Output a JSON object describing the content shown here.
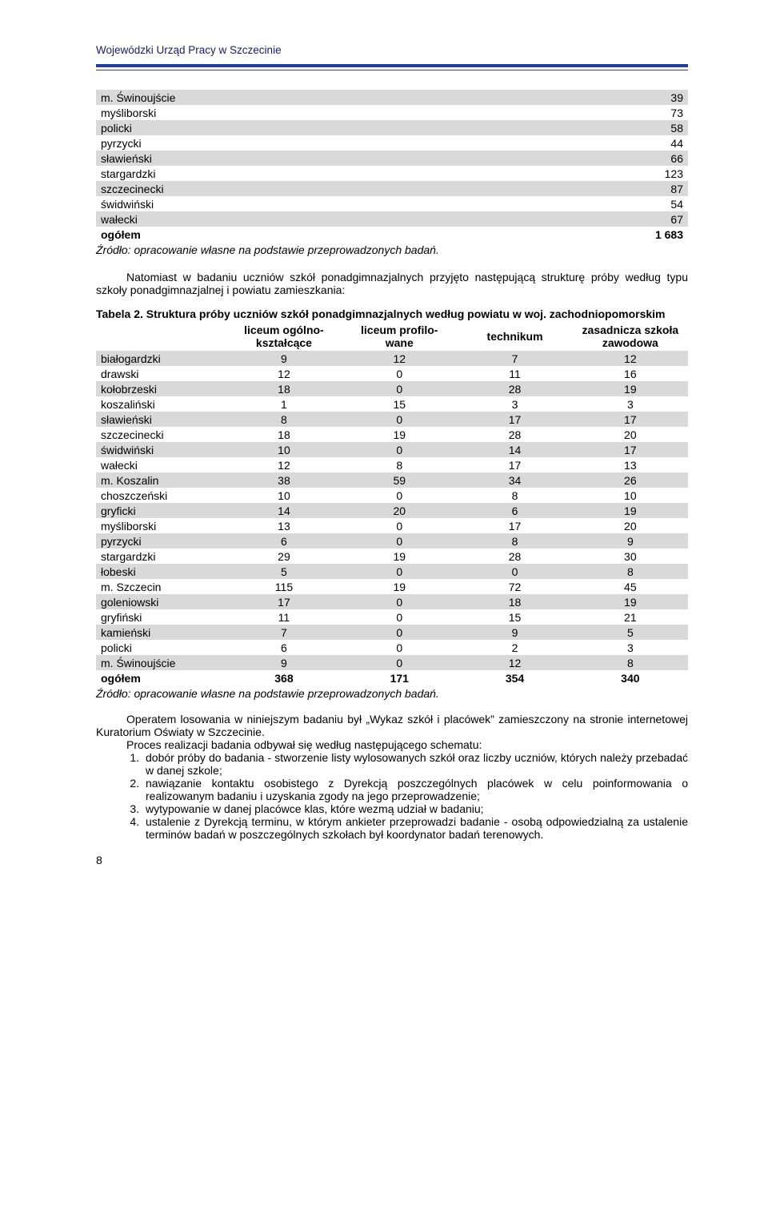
{
  "header": "Wojewódzki Urząd Pracy w Szczecinie",
  "table1": {
    "rows": [
      {
        "label": "m. Świnoujście",
        "val": "39",
        "band": true
      },
      {
        "label": "myśliborski",
        "val": "73",
        "band": false
      },
      {
        "label": "policki",
        "val": "58",
        "band": true
      },
      {
        "label": "pyrzycki",
        "val": "44",
        "band": false
      },
      {
        "label": "sławieński",
        "val": "66",
        "band": true
      },
      {
        "label": "stargardzki",
        "val": "123",
        "band": false
      },
      {
        "label": "szczecinecki",
        "val": "87",
        "band": true
      },
      {
        "label": "świdwiński",
        "val": "54",
        "band": false
      },
      {
        "label": "wałecki",
        "val": "67",
        "band": true
      }
    ],
    "total": {
      "label": "ogółem",
      "val": "1 683"
    }
  },
  "source": "Źródło: opracowanie własne na podstawie przeprowadzonych badań.",
  "para1": "Natomiast w badaniu uczniów szkół ponadgimnazjalnych przyjęto następującą strukturę próby według typu szkoły ponadgimnazjalnej i powiatu zamieszkania:",
  "caption2": "Tabela 2. Struktura próby uczniów szkół ponadgimnazjalnych według powiatu w woj. zachodniopomorskim",
  "table2": {
    "headers": [
      "",
      "liceum ogólno-\nkształcące",
      "liceum profilo-\nwane",
      "technikum",
      "zasadnicza szkoła\nzawodowa"
    ],
    "rows": [
      {
        "c": [
          "białogardzki",
          "9",
          "12",
          "7",
          "12"
        ],
        "band": true
      },
      {
        "c": [
          "drawski",
          "12",
          "0",
          "11",
          "16"
        ],
        "band": false
      },
      {
        "c": [
          "kołobrzeski",
          "18",
          "0",
          "28",
          "19"
        ],
        "band": true
      },
      {
        "c": [
          "koszaliński",
          "1",
          "15",
          "3",
          "3"
        ],
        "band": false
      },
      {
        "c": [
          "sławieński",
          "8",
          "0",
          "17",
          "17"
        ],
        "band": true
      },
      {
        "c": [
          "szczecinecki",
          "18",
          "19",
          "28",
          "20"
        ],
        "band": false
      },
      {
        "c": [
          "świdwiński",
          "10",
          "0",
          "14",
          "17"
        ],
        "band": true
      },
      {
        "c": [
          "wałecki",
          "12",
          "8",
          "17",
          "13"
        ],
        "band": false
      },
      {
        "c": [
          "m. Koszalin",
          "38",
          "59",
          "34",
          "26"
        ],
        "band": true
      },
      {
        "c": [
          "choszczeński",
          "10",
          "0",
          "8",
          "10"
        ],
        "band": false
      },
      {
        "c": [
          "gryficki",
          "14",
          "20",
          "6",
          "19"
        ],
        "band": true
      },
      {
        "c": [
          "myśliborski",
          "13",
          "0",
          "17",
          "20"
        ],
        "band": false
      },
      {
        "c": [
          "pyrzycki",
          "6",
          "0",
          "8",
          "9"
        ],
        "band": true
      },
      {
        "c": [
          "stargardzki",
          "29",
          "19",
          "28",
          "30"
        ],
        "band": false
      },
      {
        "c": [
          "łobeski",
          "5",
          "0",
          "0",
          "8"
        ],
        "band": true
      },
      {
        "c": [
          "m. Szczecin",
          "115",
          "19",
          "72",
          "45"
        ],
        "band": false
      },
      {
        "c": [
          "goleniowski",
          "17",
          "0",
          "18",
          "19"
        ],
        "band": true
      },
      {
        "c": [
          "gryfiński",
          "11",
          "0",
          "15",
          "21"
        ],
        "band": false
      },
      {
        "c": [
          "kamieński",
          "7",
          "0",
          "9",
          "5"
        ],
        "band": true
      },
      {
        "c": [
          "policki",
          "6",
          "0",
          "2",
          "3"
        ],
        "band": false
      },
      {
        "c": [
          "m. Świnoujście",
          "9",
          "0",
          "12",
          "8"
        ],
        "band": true
      }
    ],
    "total": {
      "c": [
        "ogółem",
        "368",
        "171",
        "354",
        "340"
      ]
    }
  },
  "body": {
    "p1": "Operatem losowania w niniejszym badaniu był „Wykaz szkół i placówek” zamieszczony na stronie internetowej Kuratorium Oświaty w Szczecinie.",
    "p2": "Proces realizacji badania odbywał się według następującego schematu:",
    "items": [
      "dobór próby do badania - stworzenie listy wylosowanych szkół oraz liczby uczniów, których należy przebadać w danej szkole;",
      "nawiązanie kontaktu osobistego z Dyrekcją poszczególnych placówek w celu poinformowania o realizowanym badaniu i uzyskania zgody na jego przeprowadzenie;",
      "wytypowanie w danej placówce klas, które wezmą udział w badaniu;",
      "ustalenie z Dyrekcją terminu, w którym ankieter przeprowadzi badanie - osobą odpowiedzialną za ustalenie terminów badań w poszczególnych szkołach był koordynator badań terenowych."
    ]
  },
  "pageNum": "8"
}
